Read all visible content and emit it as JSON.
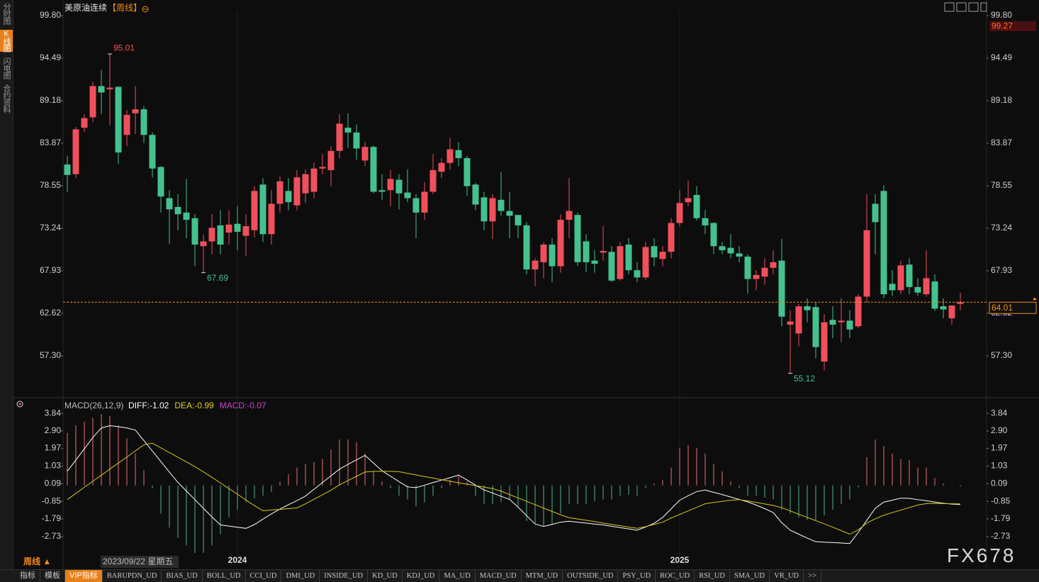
{
  "sidebar": [
    "分时图",
    "K线图",
    "闪电图",
    "合约资料"
  ],
  "sidebar_active": 1,
  "chart_data": [
    {
      "type": "candlestick",
      "title": "美原油连续",
      "period": "【周线】",
      "up_color": "#f0505c",
      "down_color": "#45c190",
      "categories": [
        null,
        null,
        null,
        null,
        null,
        null,
        null,
        null,
        null,
        null,
        null,
        null,
        null,
        null,
        null,
        null,
        null,
        null,
        null,
        null,
        "2024",
        null,
        null,
        null,
        null,
        null,
        null,
        null,
        null,
        null,
        null,
        null,
        null,
        null,
        null,
        null,
        null,
        null,
        null,
        null,
        null,
        null,
        null,
        null,
        null,
        null,
        null,
        null,
        null,
        null,
        null,
        null,
        null,
        null,
        null,
        null,
        null,
        null,
        null,
        null,
        null,
        null,
        null,
        null,
        null,
        null,
        null,
        null,
        null,
        null,
        null,
        null,
        "2025",
        null,
        null,
        null,
        null,
        null,
        null,
        null,
        null,
        null,
        null,
        null,
        null,
        null,
        null,
        null,
        null,
        null,
        null,
        null,
        null,
        null,
        null,
        null,
        null,
        null,
        null,
        null,
        null,
        null,
        null,
        null,
        null,
        null
      ],
      "open": [
        81.2,
        80.0,
        85.8,
        87.1,
        91.0,
        90.6,
        90.9,
        84.9,
        87.6,
        88.1,
        84.9,
        80.9,
        77.0,
        75.9,
        75.2,
        74.5,
        71.0,
        71.6,
        73.6,
        72.7,
        73.8,
        72.3,
        73.0,
        78.7,
        72.5,
        76.3,
        77.9,
        76.1,
        77.6,
        77.8,
        80.7,
        80.5,
        82.9,
        85.8,
        85.2,
        81.7,
        83.4,
        78.0,
        78.0,
        79.3,
        77.7,
        77.0,
        75.2,
        77.8,
        80.3,
        81.4,
        83.0,
        82.0,
        78.7,
        77.1,
        74.1,
        76.8,
        75.4,
        74.9,
        73.6,
        68.1,
        69.0,
        71.2,
        68.5,
        74.3,
        74.9,
        71.6,
        69.2,
        70.2,
        70.3,
        66.9,
        71.2,
        68.0,
        67.1,
        71.0,
        69.4,
        70.3,
        73.9,
        76.5,
        77.4,
        74.5,
        73.9,
        71.0,
        70.8,
        70.1,
        69.7,
        66.9,
        67.2,
        68.3,
        69.2,
        61.2,
        60.1,
        63.5,
        63.4,
        56.6,
        61.8,
        61.5,
        61.7,
        61.0,
        64.7,
        76.3,
        77.9,
        66.3,
        65.5,
        68.7,
        65.9,
        65.0,
        66.6,
        63.5,
        62.0,
        63.8
      ],
      "high": [
        82.3,
        85.9,
        87.5,
        91.5,
        93.0,
        95.01,
        91.0,
        88.0,
        91.0,
        88.5,
        85.2,
        81.0,
        78.0,
        77.5,
        79.4,
        75.0,
        72.5,
        75.0,
        75.5,
        75.5,
        76.0,
        75.0,
        78.5,
        79.5,
        78.0,
        79.7,
        79.5,
        80.5,
        80.6,
        81.5,
        82.5,
        83.5,
        87.5,
        87.6,
        86.2,
        84.0,
        83.6,
        80.0,
        80.5,
        80.0,
        80.6,
        77.5,
        79.0,
        82.5,
        82.0,
        84.5,
        84.0,
        82.3,
        78.9,
        77.8,
        77.5,
        80.3,
        77.8,
        74.9,
        74.0,
        69.5,
        71.5,
        72.0,
        75.0,
        79.5,
        75.2,
        72.5,
        70.5,
        73.5,
        71.0,
        71.5,
        72.0,
        69.0,
        71.5,
        72.0,
        71.0,
        74.5,
        78.0,
        79.2,
        78.5,
        75.5,
        74.0,
        71.5,
        72.5,
        71.0,
        70.0,
        68.0,
        69.5,
        70.5,
        71.9,
        63.0,
        63.8,
        64.5,
        64.0,
        62.5,
        63.5,
        64.5,
        63.0,
        65.0,
        77.5,
        77.5,
        78.6,
        68.0,
        69.2,
        69.5,
        67.0,
        70.5,
        67.5,
        64.5,
        63.6,
        65.2
      ],
      "low": [
        77.8,
        79.5,
        85.3,
        86.5,
        87.5,
        86.1,
        81.3,
        83.5,
        85.0,
        83.9,
        79.6,
        75.2,
        71.3,
        73.0,
        72.0,
        68.5,
        67.69,
        70.0,
        70.0,
        71.2,
        70.5,
        69.8,
        72.1,
        71.5,
        71.2,
        75.2,
        75.5,
        75.5,
        76.4,
        77.0,
        80.0,
        78.5,
        82.0,
        83.3,
        81.8,
        81.0,
        77.6,
        76.8,
        76.0,
        75.6,
        76.5,
        72.0,
        74.3,
        77.5,
        79.5,
        80.6,
        81.0,
        77.3,
        75.5,
        73.0,
        71.9,
        74.8,
        72.0,
        72.0,
        67.5,
        66.0,
        67.0,
        66.5,
        67.7,
        72.0,
        68.5,
        67.8,
        67.7,
        69.2,
        66.5,
        66.7,
        67.5,
        66.5,
        66.8,
        68.5,
        68.5,
        69.5,
        73.5,
        76.0,
        74.2,
        72.5,
        70.0,
        70.0,
        69.5,
        69.0,
        65.1,
        65.5,
        66.2,
        67.5,
        61.0,
        55.12,
        58.5,
        61.5,
        57.0,
        55.5,
        59.5,
        59.0,
        59.5,
        60.8,
        64.0,
        70.0,
        64.5,
        64.8,
        65.0,
        65.0,
        64.8,
        64.7,
        62.9,
        62.0,
        61.2,
        63.0
      ],
      "close": [
        79.9,
        85.6,
        87.0,
        91.0,
        90.2,
        90.8,
        82.7,
        87.4,
        88.1,
        84.9,
        80.7,
        77.2,
        75.6,
        75.0,
        74.3,
        71.2,
        71.6,
        73.3,
        71.2,
        73.7,
        72.8,
        73.5,
        77.9,
        72.5,
        76.3,
        79.1,
        76.5,
        79.6,
        80.0,
        80.7,
        80.9,
        82.9,
        86.3,
        85.2,
        83.2,
        83.4,
        77.8,
        77.8,
        79.4,
        77.6,
        77.0,
        75.2,
        77.8,
        80.5,
        81.4,
        83.1,
        82.0,
        78.5,
        76.2,
        74.1,
        77.0,
        75.4,
        74.8,
        73.6,
        68.1,
        69.2,
        71.2,
        68.5,
        74.3,
        75.4,
        69.0,
        69.0,
        68.8,
        70.4,
        66.7,
        71.0,
        68.0,
        67.1,
        70.9,
        69.6,
        70.3,
        73.9,
        76.4,
        77.0,
        74.5,
        73.6,
        71.0,
        70.5,
        70.1,
        69.7,
        66.9,
        67.4,
        68.3,
        69.0,
        62.2,
        61.6,
        63.5,
        63.0,
        58.4,
        61.5,
        61.2,
        61.7,
        60.6,
        64.7,
        73.0,
        74.0,
        65.0,
        65.5,
        68.6,
        65.9,
        65.2,
        67.0,
        63.2,
        63.1,
        63.6,
        64.01
      ],
      "ylim": [
        52.61,
        100.42
      ],
      "yticks": [
        {
          "value": 99.8,
          "label": "99.80"
        },
        94.49,
        89.18,
        83.87,
        78.55,
        73.24,
        67.93,
        62.62,
        {
          "value": 57.3,
          "label": "57.30"
        }
      ],
      "annotations": [
        95.01,
        67.69,
        55.12
      ],
      "last_price": 64.01,
      "last_price_color": "#f0901a",
      "crosshair_price": 99.27
    },
    {
      "type": "macd",
      "title": "MACD(26,12,9)",
      "legend": [
        {
          "text": "DIFF:-1.02",
          "color": "#ffffff"
        },
        {
          "text": "DEA:-0.99",
          "color": "#e0d020"
        },
        {
          "text": "MACD:-0.07",
          "color": "#d040d0"
        }
      ],
      "diff_color": "#ffffff",
      "dea_color": "#d8c81a",
      "up_color": "#f07070",
      "down_color": "#4fb38c",
      "diff": [
        0.75,
        1.35,
        1.95,
        2.55,
        3.06,
        3.18,
        3.13,
        3.06,
        2.95,
        2.39,
        1.83,
        1.27,
        0.71,
        0.16,
        -0.3,
        -0.76,
        -1.22,
        -1.68,
        -2.11,
        -2.17,
        -2.23,
        -2.29,
        -2.09,
        -1.8,
        -1.52,
        -1.26,
        -1.03,
        -0.81,
        -0.57,
        -0.21,
        0.15,
        0.51,
        0.87,
        1.12,
        1.36,
        1.6,
        1.19,
        0.78,
        0.49,
        0.2,
        -0.08,
        -0.12,
        0.01,
        0.15,
        0.28,
        0.41,
        0.55,
        0.29,
        0.01,
        -0.24,
        -0.41,
        -0.58,
        -0.75,
        -1.16,
        -1.61,
        -2.06,
        -2.19,
        -2.08,
        -1.96,
        -1.91,
        -1.96,
        -2.01,
        -2.06,
        -2.11,
        -2.18,
        -2.25,
        -2.32,
        -2.39,
        -2.22,
        -2.02,
        -1.71,
        -1.25,
        -0.79,
        -0.55,
        -0.33,
        -0.25,
        -0.37,
        -0.49,
        -0.62,
        -0.75,
        -0.88,
        -1.05,
        -1.24,
        -1.45,
        -1.99,
        -2.39,
        -2.6,
        -2.81,
        -3.0,
        -3.03,
        -3.05,
        -3.07,
        -3.1,
        -2.51,
        -1.86,
        -1.22,
        -0.89,
        -0.79,
        -0.68,
        -0.69,
        -0.76,
        -0.82,
        -0.89,
        -0.95,
        -1.0,
        -1.02
      ],
      "dea": [
        -0.75,
        -0.43,
        -0.1,
        0.22,
        0.54,
        0.87,
        1.19,
        1.51,
        1.84,
        2.16,
        2.25,
        2.0,
        1.75,
        1.5,
        1.25,
        1.0,
        0.72,
        0.43,
        0.13,
        -0.17,
        -0.47,
        -0.78,
        -1.08,
        -1.35,
        -1.31,
        -1.28,
        -1.24,
        -1.2,
        -0.98,
        -0.74,
        -0.5,
        -0.26,
        0.03,
        0.26,
        0.48,
        0.71,
        0.75,
        0.75,
        0.75,
        0.73,
        0.64,
        0.56,
        0.47,
        0.39,
        0.3,
        0.22,
        0.14,
        0.06,
        -0.01,
        -0.09,
        -0.17,
        -0.31,
        -0.49,
        -0.67,
        -0.85,
        -1.03,
        -1.21,
        -1.39,
        -1.57,
        -1.72,
        -1.79,
        -1.86,
        -1.93,
        -2.01,
        -2.08,
        -2.15,
        -2.22,
        -2.29,
        -2.2,
        -2.08,
        -1.96,
        -1.74,
        -1.55,
        -1.36,
        -1.17,
        -0.98,
        -0.91,
        -0.85,
        -0.79,
        -0.76,
        -0.83,
        -0.91,
        -0.99,
        -1.07,
        -1.19,
        -1.36,
        -1.54,
        -1.71,
        -1.88,
        -2.05,
        -2.23,
        -2.41,
        -2.6,
        -2.37,
        -2.01,
        -1.78,
        -1.59,
        -1.45,
        -1.32,
        -1.18,
        -1.05,
        -0.97,
        -0.96,
        -0.97,
        -0.98,
        -0.99
      ],
      "hist": [
        2.8,
        3.2,
        3.4,
        3.6,
        3.8,
        3.7,
        3.2,
        2.5,
        1.7,
        0.8,
        -0.15,
        -1.5,
        -2.25,
        -2.8,
        -3.2,
        -3.6,
        -3.6,
        -3.2,
        -2.6,
        -1.7,
        -1.3,
        -0.9,
        -0.7,
        -0.55,
        -0.35,
        0.2,
        0.6,
        0.95,
        1.15,
        1.25,
        1.4,
        1.9,
        2.45,
        2.45,
        2.3,
        1.7,
        0.75,
        0.2,
        -0.15,
        -0.55,
        -0.75,
        -1.1,
        -0.9,
        -0.55,
        -0.15,
        0.3,
        0.5,
        0.2,
        -0.55,
        -1.0,
        -1.0,
        -0.9,
        -0.75,
        -1.1,
        -1.9,
        -2.05,
        -2.15,
        -2.05,
        -1.5,
        -1.0,
        -1.0,
        -1.0,
        -0.85,
        -0.75,
        -0.75,
        -0.55,
        -0.5,
        -0.55,
        -0.15,
        0.1,
        0.3,
        0.95,
        2.0,
        2.15,
        2.0,
        1.7,
        1.15,
        0.75,
        0.2,
        -0.15,
        -0.55,
        -0.55,
        -0.65,
        -0.75,
        -1.3,
        -1.5,
        -1.7,
        -1.85,
        -1.85,
        -1.6,
        -1.3,
        -1.0,
        -0.75,
        -0.1,
        1.5,
        2.45,
        2.1,
        1.7,
        1.4,
        1.35,
        0.95,
        0.95,
        0.4,
        0.1,
        -0.02,
        -0.07
      ],
      "ylim": [
        -3.79,
        4.41
      ],
      "yticks": [
        3.84,
        {
          "value": 2.9,
          "label": "2.90"
        },
        1.97,
        1.03,
        0.09,
        -0.85,
        -1.79,
        -2.73
      ]
    }
  ],
  "footer": {
    "period": "周线 ▲",
    "cursor_date": "2023/09/22 星期五",
    "tabs": [
      "指标",
      "模板",
      "VIP指标",
      "BARUPDN_UD",
      "BIAS_UD",
      "BOLL_UD",
      "CCI_UD",
      "DMI_UD",
      "INSIDE_UD",
      "KD_UD",
      "KDJ_UD",
      "MA_UD",
      "MACD_UD",
      "MTM_UD",
      "OUTSIDE_UD",
      "PSY_UD",
      "ROC_UD",
      "RSI_UD",
      "SMA_UD",
      "VR_UD",
      ">>"
    ],
    "active_tab": 2
  },
  "watermark": "FX678"
}
